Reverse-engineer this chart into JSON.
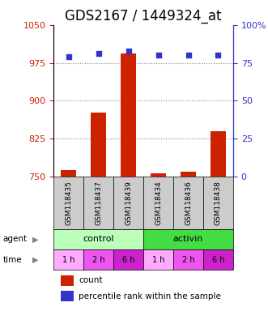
{
  "title": "GDS2167 / 1449324_at",
  "samples": [
    "GSM118435",
    "GSM118437",
    "GSM118439",
    "GSM118434",
    "GSM118436",
    "GSM118438"
  ],
  "count_values": [
    762,
    877,
    993,
    757,
    760,
    840
  ],
  "percentile_values": [
    79,
    81,
    83,
    80,
    80,
    80
  ],
  "ylim_left": [
    750,
    1050
  ],
  "ylim_right": [
    0,
    100
  ],
  "yticks_left": [
    750,
    825,
    900,
    975,
    1050
  ],
  "yticks_right": [
    0,
    25,
    50,
    75,
    100
  ],
  "bar_color": "#cc2200",
  "dot_color": "#3333cc",
  "agent_groups": [
    {
      "label": "control",
      "color": "#bbffbb",
      "start": 0,
      "end": 3
    },
    {
      "label": "activin",
      "color": "#44dd44",
      "start": 3,
      "end": 6
    }
  ],
  "time_labels": [
    "1 h",
    "2 h",
    "6 h",
    "1 h",
    "2 h",
    "6 h"
  ],
  "time_colors": [
    "#ffaaff",
    "#ee55ee",
    "#cc22cc",
    "#ffaaff",
    "#ee55ee",
    "#cc22cc"
  ],
  "grid_color": "#888888",
  "sample_box_color": "#cccccc",
  "left_axis_color": "#cc2200",
  "right_axis_color": "#3333cc",
  "title_fontsize": 12,
  "legend_count_label": "count",
  "legend_percentile_label": "percentile rank within the sample"
}
